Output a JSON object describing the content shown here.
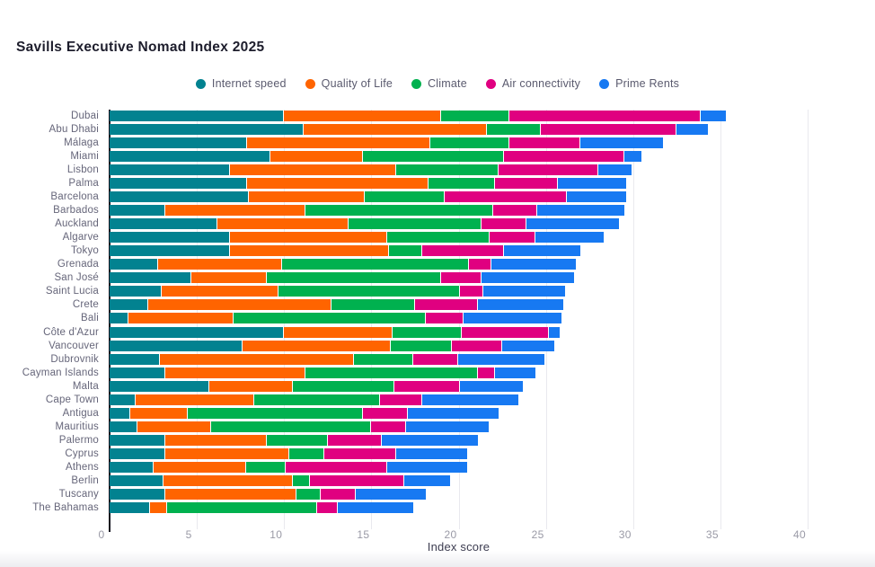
{
  "header": {
    "title": "Savills Executive Nomad Index 2025"
  },
  "chart_data": {
    "type": "bar",
    "stacked": true,
    "orientation": "horizontal",
    "title": "Savills Executive Nomad Index 2025",
    "xlabel": "Index score",
    "xlim": [
      0,
      40
    ],
    "xticks": [
      0,
      5,
      10,
      15,
      20,
      25,
      30,
      35,
      40
    ],
    "grid": true,
    "legend_position": "top-center",
    "categories": [
      "Dubai",
      "Abu Dhabi",
      "Málaga",
      "Miami",
      "Lisbon",
      "Palma",
      "Barcelona",
      "Barbados",
      "Auckland",
      "Algarve",
      "Tokyo",
      "Grenada",
      "San José",
      "Saint Lucia",
      "Crete",
      "Bali",
      "Côte d'Azur",
      "Vancouver",
      "Dubrovnik",
      "Cayman Islands",
      "Malta",
      "Cape Town",
      "Antigua",
      "Mauritius",
      "Palermo",
      "Cyprus",
      "Athens",
      "Berlin",
      "Tuscany",
      "The Bahamas"
    ],
    "series": [
      {
        "name": "Internet speed",
        "color": "#028290",
        "values": [
          10.0,
          11.1,
          7.9,
          9.2,
          6.9,
          7.9,
          8.0,
          3.2,
          6.2,
          6.9,
          6.9,
          2.8,
          4.7,
          3.0,
          2.2,
          1.1,
          10.0,
          7.6,
          2.9,
          3.2,
          5.7,
          1.5,
          1.2,
          1.6,
          3.2,
          3.2,
          2.5,
          3.1,
          3.2,
          2.3
        ]
      },
      {
        "name": "Quality of Life",
        "color": "#ff6400",
        "values": [
          9.0,
          10.5,
          10.5,
          5.3,
          9.5,
          10.4,
          6.6,
          8.0,
          7.5,
          9.0,
          9.1,
          7.1,
          4.3,
          6.7,
          10.5,
          6.0,
          6.2,
          8.5,
          11.1,
          8.0,
          4.8,
          6.8,
          3.3,
          4.2,
          5.8,
          7.1,
          5.3,
          7.4,
          7.5,
          1.0
        ]
      },
      {
        "name": "Climate",
        "color": "#00b14f",
        "values": [
          3.9,
          3.1,
          4.5,
          8.1,
          5.9,
          3.8,
          4.6,
          10.8,
          7.6,
          5.9,
          1.9,
          10.7,
          10.0,
          10.4,
          4.8,
          11.0,
          4.0,
          3.5,
          3.4,
          9.9,
          5.8,
          7.2,
          10.0,
          9.2,
          3.5,
          2.0,
          2.3,
          1.0,
          1.4,
          8.6
        ]
      },
      {
        "name": "Air connectivity",
        "color": "#e00080",
        "values": [
          11.0,
          7.8,
          4.1,
          6.9,
          5.7,
          3.6,
          7.0,
          2.5,
          2.6,
          2.6,
          4.7,
          1.3,
          2.3,
          1.3,
          3.6,
          2.2,
          5.0,
          2.9,
          2.6,
          1.0,
          3.8,
          2.4,
          2.6,
          2.0,
          3.1,
          4.1,
          5.8,
          5.4,
          2.0,
          1.2
        ]
      },
      {
        "name": "Prime Rents",
        "color": "#1779f2",
        "values": [
          1.4,
          1.8,
          4.7,
          1.0,
          1.9,
          3.9,
          3.4,
          5.0,
          5.3,
          3.9,
          4.4,
          4.8,
          5.3,
          4.7,
          4.9,
          5.6,
          0.6,
          3.0,
          4.9,
          2.3,
          3.6,
          5.5,
          5.2,
          4.7,
          5.5,
          4.1,
          4.6,
          2.6,
          4.0,
          4.3
        ]
      }
    ]
  }
}
